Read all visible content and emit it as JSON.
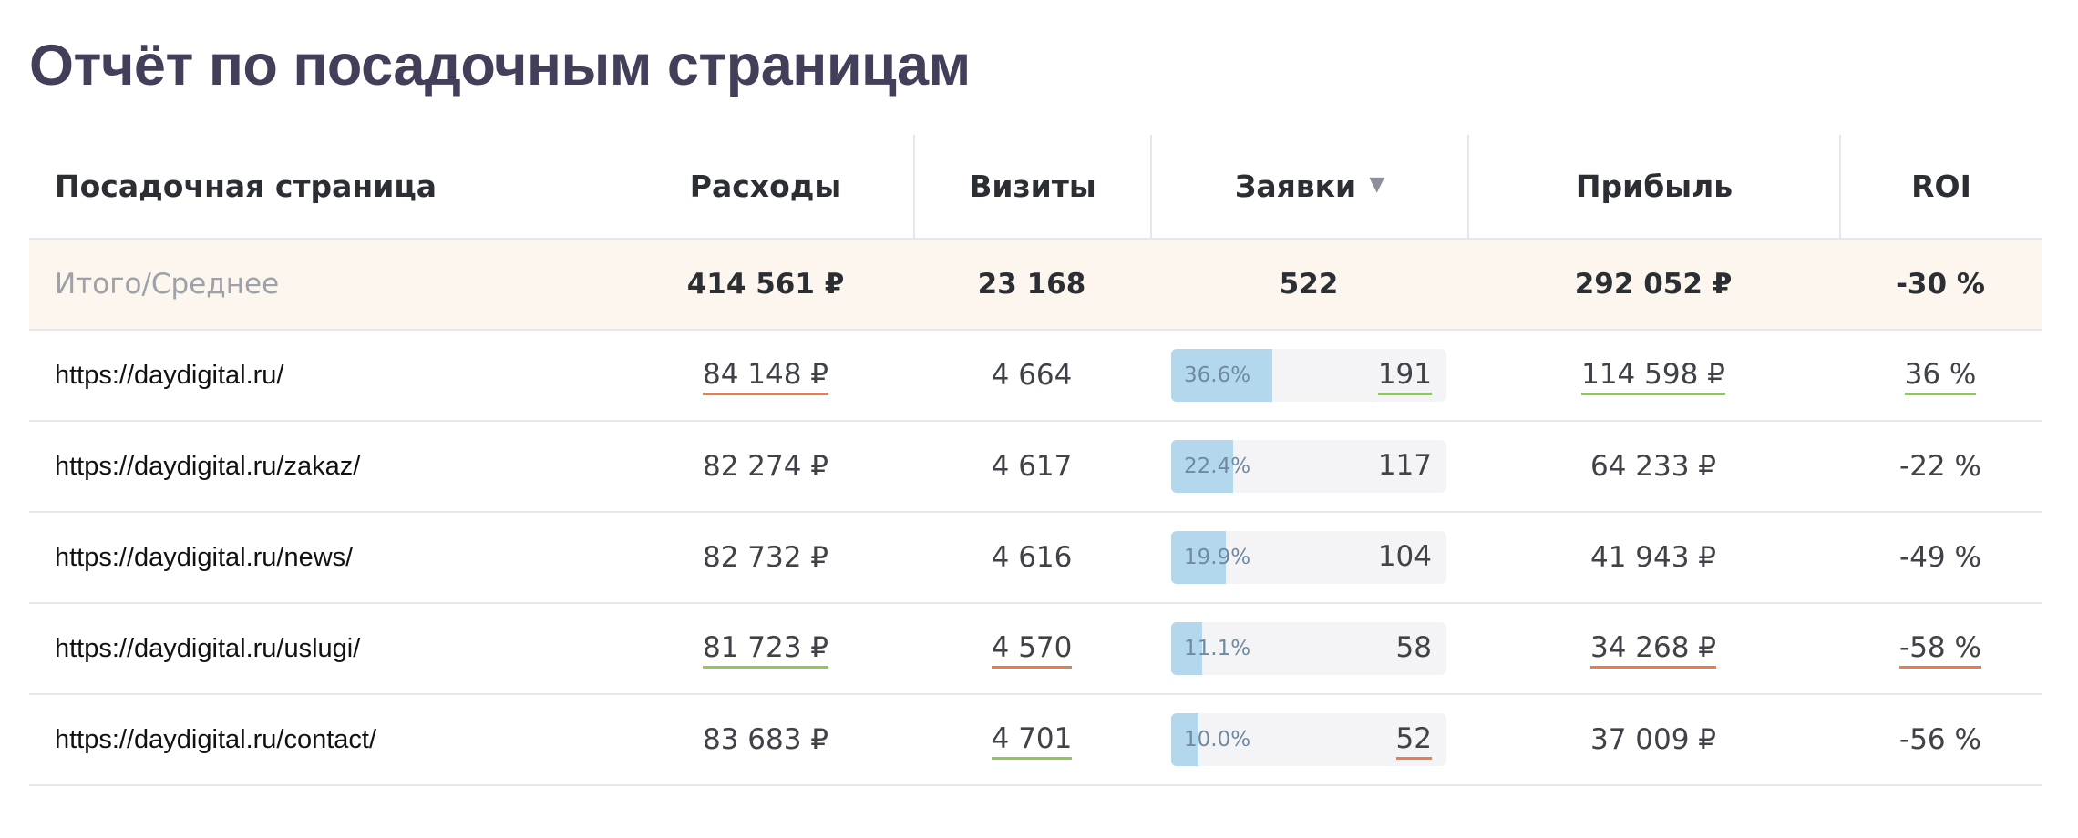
{
  "title": "Отчёт по посадочным страницам",
  "colors": {
    "title": "#423f5a",
    "total_row_bg": "#fcf6ef",
    "bar_fill": "#b3d8ee",
    "underline_red": "#ef7a4a",
    "underline_green": "#8ccb52"
  },
  "columns": {
    "page": "Посадочная страница",
    "cost": "Расходы",
    "visits": "Визиты",
    "leads": "Заявки",
    "profit": "Прибыль",
    "roi": "ROI"
  },
  "sort": {
    "column": "leads",
    "icon": "sort-desc-triangle-icon",
    "glyph": "▼"
  },
  "total": {
    "label": "Итого/Среднее",
    "cost": "414 561 ₽",
    "visits": "23 168",
    "leads": "522",
    "profit": "292 052 ₽",
    "roi": "-30 %"
  },
  "rows": [
    {
      "page": "https://daydigital.ru/",
      "cost": "84 148 ₽",
      "cost_mark": "red",
      "visits": "4 664",
      "visits_mark": "",
      "lead_pct": "36.6%",
      "lead_share": 0.366,
      "leads": "191",
      "leads_mark": "green",
      "profit": "114 598 ₽",
      "profit_mark": "green",
      "roi": "36 %",
      "roi_mark": "green"
    },
    {
      "page": "https://daydigital.ru/zakaz/",
      "cost": "82 274 ₽",
      "cost_mark": "",
      "visits": "4 617",
      "visits_mark": "",
      "lead_pct": "22.4%",
      "lead_share": 0.224,
      "leads": "117",
      "leads_mark": "",
      "profit": "64 233 ₽",
      "profit_mark": "",
      "roi": "-22 %",
      "roi_mark": ""
    },
    {
      "page": "https://daydigital.ru/news/",
      "cost": "82 732 ₽",
      "cost_mark": "",
      "visits": "4 616",
      "visits_mark": "",
      "lead_pct": "19.9%",
      "lead_share": 0.199,
      "leads": "104",
      "leads_mark": "",
      "profit": "41 943 ₽",
      "profit_mark": "",
      "roi": "-49 %",
      "roi_mark": ""
    },
    {
      "page": "https://daydigital.ru/uslugi/",
      "cost": "81 723 ₽",
      "cost_mark": "green",
      "visits": "4 570",
      "visits_mark": "red",
      "lead_pct": "11.1%",
      "lead_share": 0.111,
      "leads": "58",
      "leads_mark": "",
      "profit": "34 268 ₽",
      "profit_mark": "red",
      "roi": "-58 %",
      "roi_mark": "red"
    },
    {
      "page": "https://daydigital.ru/contact/",
      "cost": "83 683 ₽",
      "cost_mark": "",
      "visits": "4 701",
      "visits_mark": "green",
      "lead_pct": "10.0%",
      "lead_share": 0.1,
      "leads": "52",
      "leads_mark": "red",
      "profit": "37 009 ₽",
      "profit_mark": "",
      "roi": "-56 %",
      "roi_mark": ""
    }
  ]
}
